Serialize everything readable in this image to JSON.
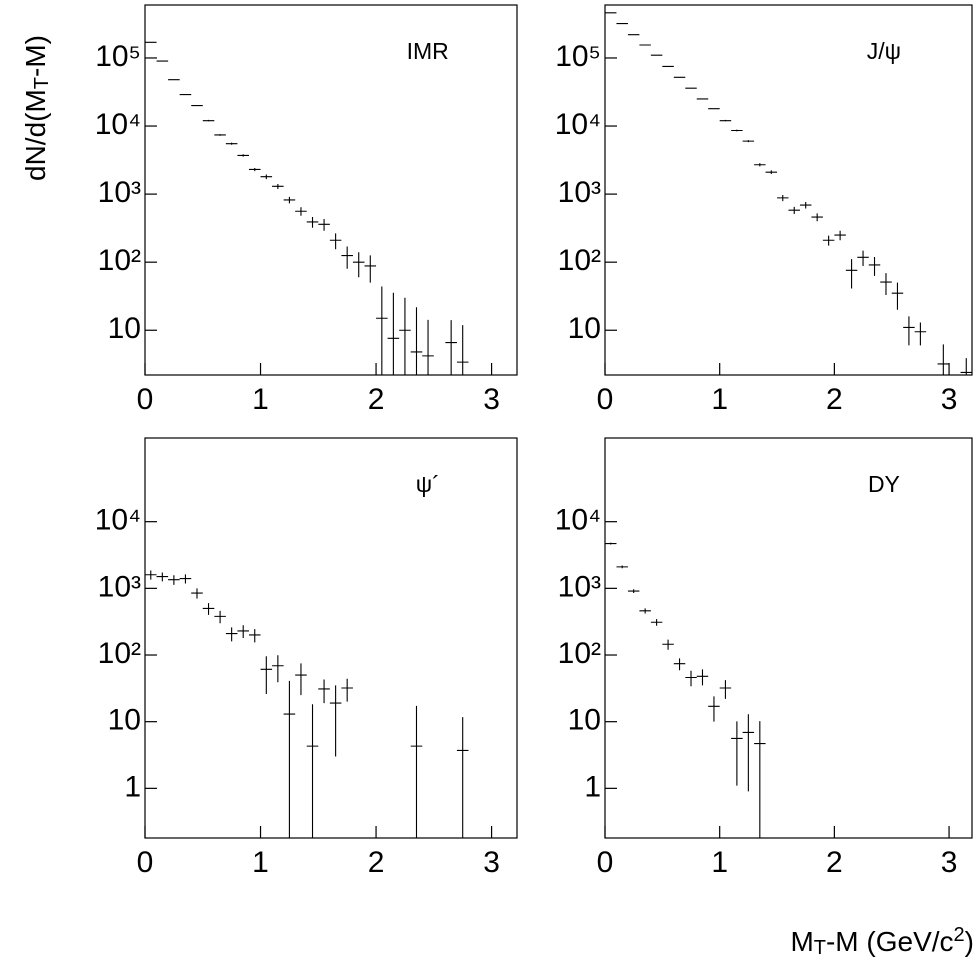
{
  "chart_data": [
    {
      "type": "errorbar",
      "label": "IMR",
      "log_y": true,
      "color": "#000000",
      "bin_width": 0.1,
      "ylabel": [
        "dN/d(M",
        "T",
        "-M)"
      ],
      "xlim": [
        0,
        3.22
      ],
      "ylim": [
        2.2,
        600000
      ],
      "xticks": [
        0,
        1,
        2,
        3
      ],
      "yticks": [
        10,
        {
          "value": 100,
          "label": "10²"
        },
        {
          "value": 1000,
          "label": "10³"
        },
        {
          "value": 10000,
          "label": "10⁴"
        },
        {
          "value": 100000,
          "label": "10⁵"
        }
      ],
      "x": [
        0.05,
        0.15,
        0.25,
        0.35,
        0.45,
        0.55,
        0.65,
        0.75,
        0.85,
        0.95,
        1.05,
        1.15,
        1.25,
        1.35,
        1.45,
        1.55,
        1.65,
        1.75,
        1.85,
        1.95,
        2.05,
        2.15,
        2.25,
        2.35,
        2.45,
        2.65,
        2.75
      ],
      "values": [
        170000,
        90000,
        48000,
        29000,
        20000,
        12000,
        7400,
        5500,
        3700,
        2300,
        1800,
        1300,
        820,
        560,
        390,
        360,
        210,
        125,
        100,
        88,
        15,
        7.6,
        10,
        4.8,
        4.2,
        6.6,
        3.4
      ],
      "errors": [
        2000,
        1200,
        800,
        600,
        400,
        300,
        200,
        200,
        150,
        120,
        140,
        110,
        90,
        80,
        70,
        70,
        55,
        45,
        40,
        38,
        29,
        28,
        20,
        17,
        10,
        7.5,
        8.5
      ]
    },
    {
      "type": "errorbar",
      "label": "J/ψ",
      "log_y": true,
      "color": "#000000",
      "bin_width": 0.1,
      "xlim": [
        0,
        3.2
      ],
      "ylim": [
        2.2,
        600000
      ],
      "xticks": [
        0,
        1,
        2,
        3
      ],
      "yticks": [
        10,
        {
          "value": 100,
          "label": "10²"
        },
        {
          "value": 1000,
          "label": "10³"
        },
        {
          "value": 10000,
          "label": "10⁴"
        },
        {
          "value": 100000,
          "label": "10⁵"
        }
      ],
      "x": [
        0.05,
        0.15,
        0.25,
        0.35,
        0.45,
        0.55,
        0.65,
        0.75,
        0.85,
        0.95,
        1.05,
        1.15,
        1.25,
        1.35,
        1.45,
        1.55,
        1.65,
        1.75,
        1.85,
        1.95,
        2.05,
        2.15,
        2.25,
        2.35,
        2.45,
        2.55,
        2.65,
        2.75,
        2.95,
        3.15
      ],
      "values": [
        460000,
        320000,
        220000,
        155000,
        110000,
        75000,
        52000,
        36000,
        25000,
        18000,
        12000,
        8600,
        6000,
        2700,
        2100,
        880,
        580,
        690,
        460,
        210,
        250,
        76,
        118,
        91,
        51,
        35,
        11,
        9.5,
        3.2,
        2.4
      ],
      "errors": [
        2000,
        1600,
        1300,
        1000,
        900,
        700,
        600,
        500,
        400,
        350,
        300,
        250,
        200,
        150,
        130,
        90,
        70,
        75,
        60,
        35,
        40,
        35,
        30,
        28,
        18,
        15,
        5,
        3.5,
        3,
        1.5
      ]
    },
    {
      "type": "errorbar",
      "label": "ψ´",
      "log_y": true,
      "color": "#000000",
      "bin_width": 0.1,
      "xlim": [
        0,
        3.22
      ],
      "ylim": [
        0.18,
        180000
      ],
      "xticks": [
        0,
        1,
        2,
        3
      ],
      "yticks": [
        1,
        10,
        {
          "value": 100,
          "label": "10²"
        },
        {
          "value": 1000,
          "label": "10³"
        },
        {
          "value": 10000,
          "label": "10⁴"
        }
      ],
      "x": [
        0.05,
        0.15,
        0.25,
        0.35,
        0.45,
        0.55,
        0.65,
        0.75,
        0.85,
        0.95,
        1.05,
        1.15,
        1.25,
        1.35,
        1.45,
        1.55,
        1.65,
        1.75,
        2.35,
        2.75
      ],
      "values": [
        1600,
        1500,
        1350,
        1400,
        850,
        500,
        380,
        210,
        230,
        200,
        61,
        69,
        13,
        50,
        4.3,
        31,
        19,
        32,
        4.3,
        3.7
      ],
      "errors": [
        250,
        230,
        220,
        220,
        150,
        100,
        80,
        50,
        50,
        45,
        35,
        30,
        28,
        25,
        14,
        12,
        16,
        12,
        13,
        8
      ]
    },
    {
      "type": "errorbar",
      "label": "DY",
      "log_y": true,
      "color": "#000000",
      "bin_width": 0.1,
      "xlabel": [
        "M",
        "T",
        "-M (GeV/c",
        "2",
        ")"
      ],
      "xlim": [
        0,
        3.2
      ],
      "ylim": [
        0.18,
        180000
      ],
      "xticks": [
        0,
        1,
        2,
        3
      ],
      "yticks": [
        1,
        10,
        {
          "value": 100,
          "label": "10²"
        },
        {
          "value": 1000,
          "label": "10³"
        },
        {
          "value": 10000,
          "label": "10⁴"
        }
      ],
      "x": [
        0.05,
        0.15,
        0.25,
        0.35,
        0.45,
        0.55,
        0.65,
        0.75,
        0.85,
        0.95,
        1.05,
        1.15,
        1.25,
        1.35
      ],
      "values": [
        4700,
        2100,
        910,
        460,
        310,
        145,
        74,
        46,
        48,
        17,
        32,
        5.6,
        6.9,
        4.7
      ],
      "errors": [
        150,
        100,
        60,
        40,
        35,
        25,
        15,
        12,
        13,
        7,
        10,
        4.5,
        6,
        5.5
      ]
    }
  ]
}
